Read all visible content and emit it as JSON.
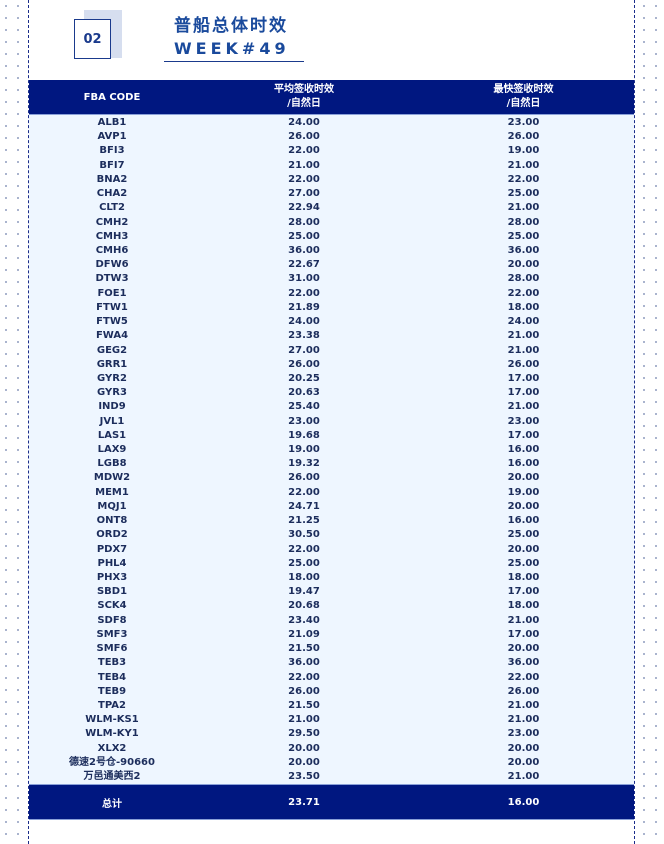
{
  "badge": "02",
  "title": "普船总体时效",
  "week": "WEEK#49",
  "table": {
    "headers": [
      "FBA CODE",
      "平均签收时效",
      "/自然日",
      "最快签收时效",
      "/自然日"
    ],
    "rows": [
      [
        "ALB1",
        "24.00",
        "23.00"
      ],
      [
        "AVP1",
        "26.00",
        "26.00"
      ],
      [
        "BFI3",
        "22.00",
        "19.00"
      ],
      [
        "BFI7",
        "21.00",
        "21.00"
      ],
      [
        "BNA2",
        "22.00",
        "22.00"
      ],
      [
        "CHA2",
        "27.00",
        "25.00"
      ],
      [
        "CLT2",
        "22.94",
        "21.00"
      ],
      [
        "CMH2",
        "28.00",
        "28.00"
      ],
      [
        "CMH3",
        "25.00",
        "25.00"
      ],
      [
        "CMH6",
        "36.00",
        "36.00"
      ],
      [
        "DFW6",
        "22.67",
        "20.00"
      ],
      [
        "DTW3",
        "31.00",
        "28.00"
      ],
      [
        "FOE1",
        "22.00",
        "22.00"
      ],
      [
        "FTW1",
        "21.89",
        "18.00"
      ],
      [
        "FTW5",
        "24.00",
        "24.00"
      ],
      [
        "FWA4",
        "23.38",
        "21.00"
      ],
      [
        "GEG2",
        "27.00",
        "21.00"
      ],
      [
        "GRR1",
        "26.00",
        "26.00"
      ],
      [
        "GYR2",
        "20.25",
        "17.00"
      ],
      [
        "GYR3",
        "20.63",
        "17.00"
      ],
      [
        "IND9",
        "25.40",
        "21.00"
      ],
      [
        "JVL1",
        "23.00",
        "23.00"
      ],
      [
        "LAS1",
        "19.68",
        "17.00"
      ],
      [
        "LAX9",
        "19.00",
        "16.00"
      ],
      [
        "LGB8",
        "19.32",
        "16.00"
      ],
      [
        "MDW2",
        "26.00",
        "20.00"
      ],
      [
        "MEM1",
        "22.00",
        "19.00"
      ],
      [
        "MQJ1",
        "24.71",
        "20.00"
      ],
      [
        "ONT8",
        "21.25",
        "16.00"
      ],
      [
        "ORD2",
        "30.50",
        "25.00"
      ],
      [
        "PDX7",
        "22.00",
        "20.00"
      ],
      [
        "PHL4",
        "25.00",
        "25.00"
      ],
      [
        "PHX3",
        "18.00",
        "18.00"
      ],
      [
        "SBD1",
        "19.47",
        "17.00"
      ],
      [
        "SCK4",
        "20.68",
        "18.00"
      ],
      [
        "SDF8",
        "23.40",
        "21.00"
      ],
      [
        "SMF3",
        "21.09",
        "17.00"
      ],
      [
        "SMF6",
        "21.50",
        "20.00"
      ],
      [
        "TEB3",
        "36.00",
        "36.00"
      ],
      [
        "TEB4",
        "22.00",
        "22.00"
      ],
      [
        "TEB9",
        "26.00",
        "26.00"
      ],
      [
        "TPA2",
        "21.50",
        "21.00"
      ],
      [
        "WLM-KS1",
        "21.00",
        "21.00"
      ],
      [
        "WLM-KY1",
        "29.50",
        "23.00"
      ],
      [
        "XLX2",
        "20.00",
        "20.00"
      ],
      [
        "德速2号仓-90660",
        "20.00",
        "20.00"
      ],
      [
        "万邑通美西2",
        "23.50",
        "21.00"
      ]
    ],
    "total": [
      "总计",
      "23.71",
      "16.00"
    ]
  },
  "colors": {
    "header_bg": "#001780",
    "body_bg": "#eef6ff",
    "accent": "#1a4a9c"
  }
}
